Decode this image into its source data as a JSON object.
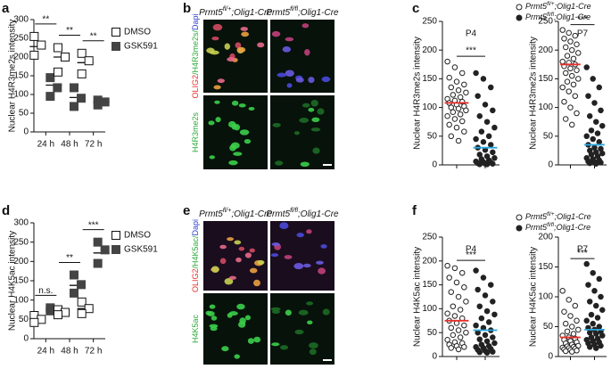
{
  "panel_labels": [
    "a",
    "b",
    "c",
    "d",
    "e",
    "f"
  ],
  "genotypes": [
    {
      "gene": "Prmt5",
      "allele": "fl/+",
      "driver": ";Olig1-Cre"
    },
    {
      "gene": "Prmt5",
      "allele": "fl/fl",
      "driver": ";Olig1-Cre"
    }
  ],
  "images": [
    {
      "row_labels": [
        [
          {
            "text": "OLIG2",
            "color": "#e8302a"
          },
          {
            "text": "/H4R3me2s/",
            "color": "#2faa3c"
          },
          {
            "text": "Dapi",
            "color": "#2a3fd0"
          }
        ],
        [
          {
            "text": "H4R3me2s",
            "color": "#2faa3c"
          }
        ]
      ]
    },
    {
      "row_labels": [
        [
          {
            "text": "OLIG2",
            "color": "#e8302a"
          },
          {
            "text": "/H4K5ac/",
            "color": "#2faa3c"
          },
          {
            "text": "Dapi",
            "color": "#2a3fd0"
          }
        ],
        [
          {
            "text": "H4K5ac",
            "color": "#2faa3c"
          }
        ]
      ]
    }
  ],
  "chart_data": [
    {
      "type": "dot",
      "ylabel": "Nuclear H4R3me2s intensity",
      "categories": [
        "24 h",
        "48 h",
        "72 h"
      ],
      "ylim": [
        0,
        300
      ],
      "yticks": [
        0,
        50,
        100,
        150,
        200,
        250,
        300
      ],
      "series": [
        {
          "name": "DMSO",
          "marker": "open",
          "color": "#111111",
          "values": [
            [
              255,
              232,
              205
            ],
            [
              225,
              200,
              160
            ],
            [
              210,
              190,
              155
            ]
          ],
          "means": [
            228,
            200,
            185
          ]
        },
        {
          "name": "GSK591",
          "marker": "filled",
          "color": "#444444",
          "values": [
            [
              145,
              118,
              95
            ],
            [
              118,
              90,
              68
            ],
            [
              85,
              80,
              72
            ]
          ],
          "means": [
            125,
            92,
            80
          ]
        }
      ],
      "significance": [
        "**",
        "**",
        "**"
      ]
    },
    {
      "type": "strip",
      "title": "P4",
      "ylabel": "Nuclear H4R3me2s intensity",
      "ylim": [
        0,
        250
      ],
      "yticks": [
        0,
        50,
        100,
        150,
        200,
        250
      ],
      "series": [
        {
          "marker": "open",
          "color": "#222222",
          "mean": 108,
          "mean_color": "#e8302a",
          "values": [
            180,
            170,
            160,
            152,
            145,
            140,
            135,
            130,
            126,
            122,
            118,
            115,
            112,
            110,
            108,
            105,
            102,
            100,
            98,
            95,
            92,
            88,
            85,
            80,
            76,
            70,
            65,
            58,
            50,
            42
          ]
        },
        {
          "marker": "filled",
          "color": "#222222",
          "mean": 30,
          "mean_color": "#29a8e0",
          "values": [
            160,
            150,
            135,
            120,
            105,
            95,
            85,
            75,
            65,
            58,
            50,
            45,
            40,
            35,
            30,
            26,
            22,
            18,
            15,
            12,
            10,
            8,
            6,
            5,
            4,
            3,
            2,
            2,
            1,
            1
          ]
        }
      ],
      "significance": "***"
    },
    {
      "type": "strip",
      "title": "P7",
      "ylabel": "Nuclear H4R3me2s intensity",
      "ylim": [
        0,
        250
      ],
      "yticks": [
        0,
        50,
        100,
        150,
        200,
        250
      ],
      "series": [
        {
          "marker": "open",
          "color": "#222222",
          "mean": 175,
          "mean_color": "#e8302a",
          "values": [
            235,
            230,
            225,
            220,
            215,
            210,
            205,
            200,
            195,
            190,
            185,
            180,
            178,
            175,
            172,
            168,
            165,
            160,
            155,
            150,
            145,
            140,
            135,
            128,
            120,
            110,
            100,
            90,
            80,
            70
          ]
        },
        {
          "marker": "filled",
          "color": "#222222",
          "mean": 35,
          "mean_color": "#29a8e0",
          "values": [
            170,
            150,
            135,
            120,
            108,
            95,
            85,
            75,
            68,
            60,
            55,
            50,
            45,
            40,
            35,
            30,
            28,
            25,
            22,
            20,
            18,
            15,
            12,
            10,
            8,
            6,
            5,
            4,
            3,
            2
          ]
        }
      ],
      "significance": "***"
    },
    {
      "type": "dot",
      "ylabel": "Nuclear H4K5ac intensity",
      "categories": [
        "24 h",
        "48 h",
        "72 h"
      ],
      "ylim": [
        0,
        300
      ],
      "yticks": [
        0,
        50,
        100,
        150,
        200,
        250,
        300
      ],
      "series": [
        {
          "name": "DMSO",
          "marker": "open",
          "color": "#111111",
          "values": [
            [
              60,
              50,
              42
            ],
            [
              75,
              68,
              62
            ],
            [
              95,
              78,
              65
            ]
          ],
          "means": [
            52,
            68,
            78
          ]
        },
        {
          "name": "GSK591",
          "marker": "filled",
          "color": "#444444",
          "values": [
            [
              80,
              75,
              72
            ],
            [
              165,
              140,
              118
            ],
            [
              250,
              230,
              195
            ]
          ],
          "means": [
            75,
            138,
            222
          ]
        }
      ],
      "significance": [
        "n.s.",
        "**",
        "***"
      ]
    },
    {
      "type": "strip",
      "title": "P4",
      "ylabel": "Nuclear H4K5ac intensity",
      "ylim": [
        0,
        250
      ],
      "yticks": [
        0,
        50,
        100,
        150,
        200,
        250
      ],
      "series": [
        {
          "marker": "open",
          "color": "#222222",
          "mean": 75,
          "mean_color": "#e8302a",
          "values": [
            190,
            185,
            175,
            165,
            155,
            145,
            135,
            125,
            115,
            105,
            98,
            90,
            85,
            80,
            75,
            70,
            65,
            60,
            55,
            50,
            45,
            40,
            35,
            30,
            28,
            25,
            22,
            20,
            18,
            15
          ]
        },
        {
          "marker": "filled",
          "color": "#222222",
          "mean": 55,
          "mean_color": "#29a8e0",
          "values": [
            180,
            165,
            150,
            140,
            128,
            115,
            105,
            95,
            88,
            80,
            72,
            65,
            60,
            55,
            50,
            45,
            40,
            36,
            32,
            28,
            25,
            22,
            20,
            18,
            16,
            14,
            12,
            10,
            9,
            8
          ]
        }
      ],
      "significance": "***"
    },
    {
      "type": "strip",
      "title": "P7",
      "ylabel": "Nuclear H4K5ac intensity",
      "ylim": [
        0,
        200
      ],
      "yticks": [
        0,
        50,
        100,
        150,
        200
      ],
      "series": [
        {
          "marker": "open",
          "color": "#222222",
          "mean": 32,
          "mean_color": "#e8302a",
          "values": [
            110,
            95,
            85,
            75,
            68,
            60,
            55,
            50,
            45,
            42,
            38,
            35,
            32,
            30,
            28,
            26,
            24,
            22,
            20,
            18,
            17,
            16,
            15,
            14,
            13,
            12,
            11,
            10,
            9,
            8
          ]
        },
        {
          "marker": "filled",
          "color": "#222222",
          "mean": 45,
          "mean_color": "#29a8e0",
          "values": [
            155,
            140,
            130,
            120,
            110,
            100,
            92,
            85,
            78,
            70,
            65,
            60,
            55,
            50,
            48,
            45,
            42,
            40,
            38,
            35,
            32,
            30,
            28,
            26,
            24,
            22,
            20,
            18,
            16,
            14
          ]
        }
      ],
      "significance": "***"
    }
  ]
}
